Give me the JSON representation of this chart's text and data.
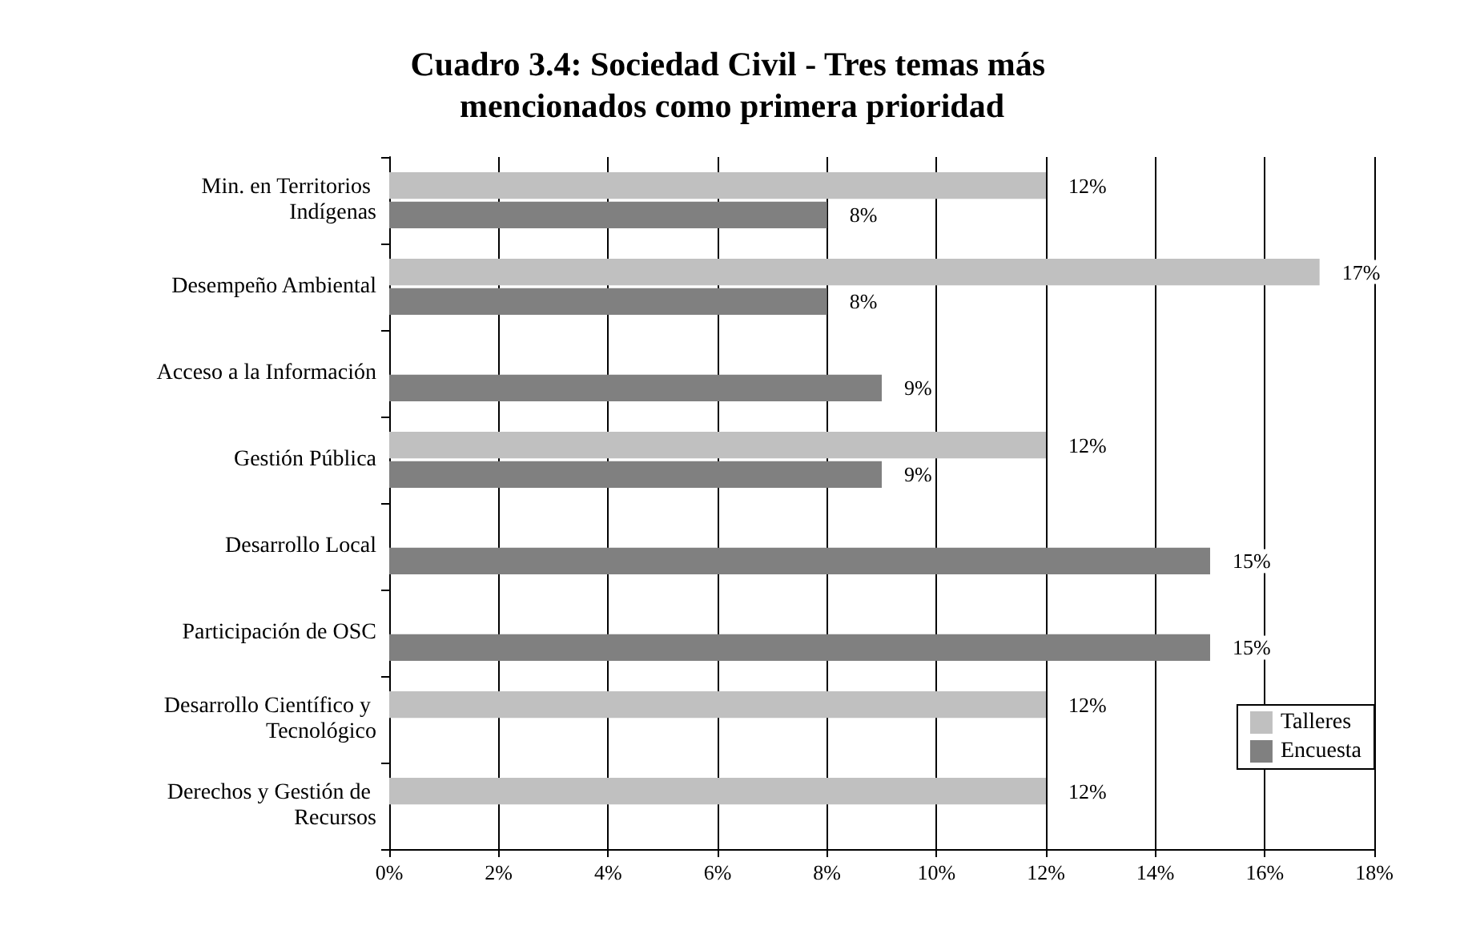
{
  "chart_data": {
    "type": "bar",
    "orientation": "horizontal",
    "title": "Cuadro 3.4: Sociedad Civil - Tres temas más mencionados como primera prioridad",
    "categories": [
      "Min. en Territorios Indígenas",
      "Desempeño Ambiental",
      "Acceso a la Información",
      "Gestión Pública",
      "Desarrollo Local",
      "Participación de OSC",
      "Desarrollo Científico y Tecnológico",
      "Derechos y Gestión de Recursos"
    ],
    "series": [
      {
        "name": "Talleres",
        "color": "#c0c0c0",
        "values": [
          12,
          17,
          null,
          12,
          null,
          null,
          12,
          12
        ],
        "value_labels": [
          "12%",
          "17%",
          null,
          "12%",
          null,
          null,
          "12%",
          "12%"
        ]
      },
      {
        "name": "Encuesta",
        "color": "#808080",
        "values": [
          8,
          8,
          9,
          9,
          15,
          15,
          null,
          null
        ],
        "value_labels": [
          "8%",
          "8%",
          "9%",
          "9%",
          "15%",
          "15%",
          null,
          null
        ]
      }
    ],
    "xlim": [
      0,
      18
    ],
    "xticks": [
      {
        "value": 0,
        "label": "0%"
      },
      {
        "value": 2,
        "label": "2%"
      },
      {
        "value": 4,
        "label": "4%"
      },
      {
        "value": 6,
        "label": "6%"
      },
      {
        "value": 8,
        "label": "8%"
      },
      {
        "value": 10,
        "label": "10%"
      },
      {
        "value": 12,
        "label": "12%"
      },
      {
        "value": 14,
        "label": "14%"
      },
      {
        "value": 16,
        "label": "16%"
      },
      {
        "value": 18,
        "label": "18%"
      }
    ],
    "grid": "x",
    "legend": "bottom right"
  }
}
